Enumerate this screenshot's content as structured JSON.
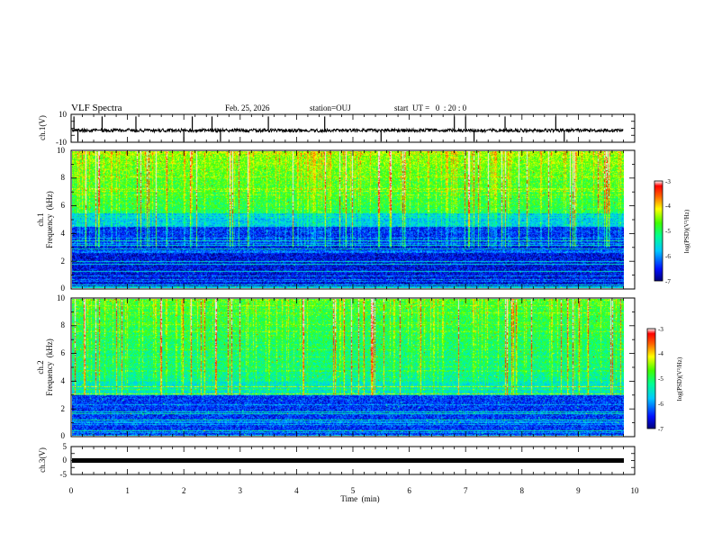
{
  "header": {
    "title": "VLF Spectra",
    "date": "Feb. 25, 2026",
    "station": "station=OUJ",
    "start_ut": "start  UT =   0  : 20 : 0"
  },
  "chart_data": [
    {
      "id": "ch1_waveform",
      "type": "line",
      "ylabel": "ch.1(V)",
      "ylim": [
        -10,
        10
      ],
      "yticks": [
        "10",
        "-10"
      ],
      "baseline": -1.5,
      "noise_amplitude": 1.2,
      "spike_times_min": [
        0.05,
        0.12,
        0.55,
        1.15,
        2.0,
        2.15,
        2.5,
        2.65,
        3.5,
        4.5,
        5.5,
        6.8,
        7.0,
        7.15,
        7.7,
        8.6,
        8.75
      ]
    },
    {
      "id": "ch1_spectrogram",
      "type": "heatmap",
      "ylabel": "ch.1\nFrequency (kHz)",
      "ylabel_lines": [
        "ch.1",
        "Frequency  (kHz)"
      ],
      "xlim": [
        0,
        10
      ],
      "ylim": [
        0,
        10
      ],
      "data_end_min": 9.8,
      "yticks": [
        "0",
        "2",
        "4",
        "6",
        "8",
        "10"
      ],
      "colorbar": {
        "label": "log(PSD)(V²/Hz)",
        "ticks": [
          "-3",
          "-4",
          "-5",
          "-6",
          "-7"
        ],
        "range": [
          -7,
          -3
        ]
      }
    },
    {
      "id": "ch2_spectrogram",
      "type": "heatmap",
      "ylabel": "ch.2\nFrequency (kHz)",
      "ylabel_lines": [
        "ch.2",
        "Frequency  (kHz)"
      ],
      "xlim": [
        0,
        10
      ],
      "ylim": [
        0,
        10
      ],
      "data_end_min": 9.8,
      "yticks": [
        "0",
        "2",
        "4",
        "6",
        "8",
        "10"
      ],
      "colorbar": {
        "label": "log(PSD)(V²/Hz)",
        "ticks": [
          "-3",
          "-4",
          "-5",
          "-6",
          "-7"
        ],
        "range": [
          -7,
          -3
        ]
      }
    },
    {
      "id": "ch3_waveform",
      "type": "line",
      "ylabel": "ch.3(V)",
      "ylim": [
        -5,
        5
      ],
      "yticks": [
        "5",
        "0",
        "-5"
      ],
      "baseline": -0.8
    }
  ],
  "xaxis": {
    "label": "Time  (min)",
    "ticks": [
      "0",
      "1",
      "2",
      "3",
      "4",
      "5",
      "6",
      "7",
      "8",
      "9",
      "10"
    ],
    "range": [
      0,
      10
    ]
  }
}
